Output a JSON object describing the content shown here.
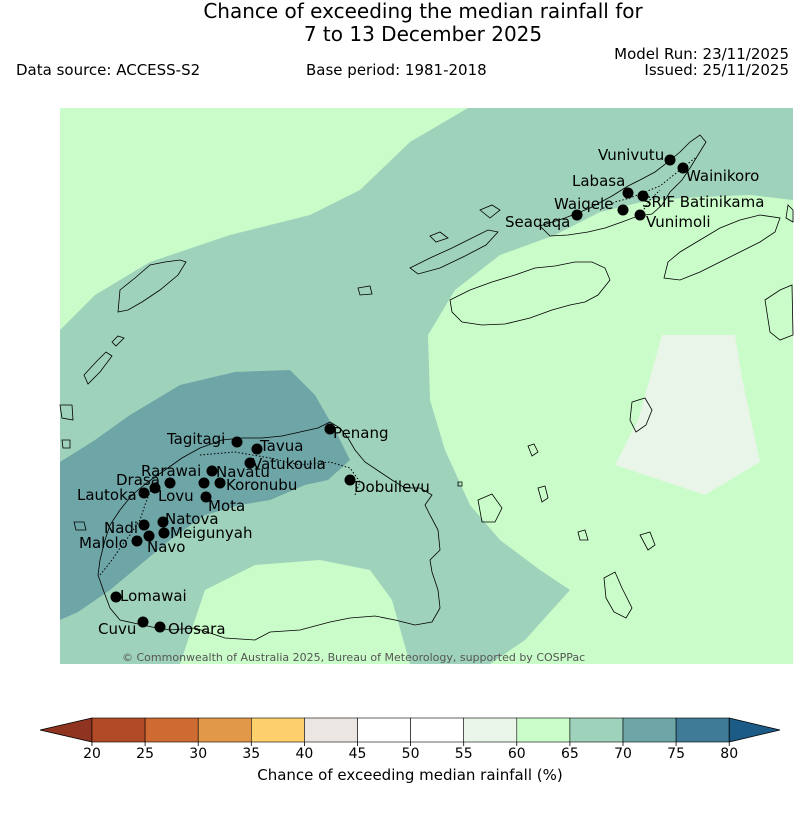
{
  "title_line1": "Chance of exceeding the median rainfall for",
  "title_line2": "7 to 13 December 2025",
  "data_source": "Data source: ACCESS-S2",
  "base_period": "Base period: 1981-2018",
  "model_run": "Model Run: 23/11/2025",
  "issued": "Issued: 25/11/2025",
  "copyright": "© Commonwealth of Australia 2025, Bureau of Meteorology, supported by COSPPac",
  "colorbar": {
    "label": "Chance of exceeding median rainfall (%)",
    "ticks": [
      "20",
      "25",
      "30",
      "35",
      "40",
      "45",
      "50",
      "55",
      "60",
      "65",
      "70",
      "75",
      "80"
    ],
    "colors": [
      "#b34a27",
      "#cf6a33",
      "#e19848",
      "#fdd06b",
      "#ece6e2",
      "#ffffff",
      "#ffffff",
      "#e8f5e8",
      "#c9fcc9",
      "#9fd2bb",
      "#6ea5a6",
      "#3f7a96"
    ],
    "under_color": "#8f3420",
    "over_color": "#1c5b86"
  },
  "stations": [
    {
      "name": "Vunivutu"
    },
    {
      "name": "Wainikoro"
    },
    {
      "name": "Labasa"
    },
    {
      "name": "Waiqele"
    },
    {
      "name": "SRIF Batinikama"
    },
    {
      "name": "Seaqaqa"
    },
    {
      "name": "Vunimoli"
    },
    {
      "name": "Penang"
    },
    {
      "name": "Tagitagi"
    },
    {
      "name": "Tavua"
    },
    {
      "name": "Vatukoula"
    },
    {
      "name": "Rarawai"
    },
    {
      "name": "Navatu"
    },
    {
      "name": "Drasa"
    },
    {
      "name": "Koronubu"
    },
    {
      "name": "Lautoka"
    },
    {
      "name": "Lovu"
    },
    {
      "name": "Mota"
    },
    {
      "name": "Dobuilevu"
    },
    {
      "name": "Natova"
    },
    {
      "name": "Nadi"
    },
    {
      "name": "Meigunyah"
    },
    {
      "name": "Malolo"
    },
    {
      "name": "Navo"
    },
    {
      "name": "Lomawai"
    },
    {
      "name": "Cuvu"
    },
    {
      "name": "Olosara"
    }
  ]
}
